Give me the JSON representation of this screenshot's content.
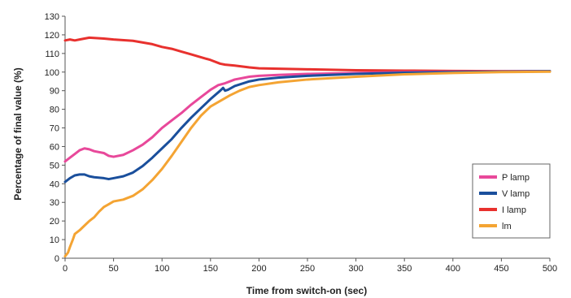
{
  "chart_data": {
    "type": "line",
    "title": "",
    "xlabel": "Time from switch-on (sec)",
    "ylabel": "Percentage of final value (%)",
    "xlim": [
      0,
      500
    ],
    "ylim": [
      0,
      130
    ],
    "x_ticks": [
      0,
      50,
      100,
      150,
      200,
      250,
      300,
      350,
      400,
      450,
      500
    ],
    "y_ticks": [
      0,
      10,
      20,
      30,
      40,
      50,
      60,
      70,
      80,
      90,
      100,
      110,
      120,
      130
    ],
    "grid": false,
    "legend_position": "right",
    "series": [
      {
        "name": "P lamp",
        "color": "#e8489a",
        "points": [
          [
            0,
            52
          ],
          [
            5,
            54
          ],
          [
            10,
            56
          ],
          [
            15,
            58
          ],
          [
            20,
            59
          ],
          [
            25,
            58.5
          ],
          [
            30,
            57.5
          ],
          [
            40,
            56.5
          ],
          [
            45,
            55
          ],
          [
            50,
            54.5
          ],
          [
            60,
            55.5
          ],
          [
            70,
            58
          ],
          [
            80,
            61
          ],
          [
            90,
            65
          ],
          [
            100,
            70
          ],
          [
            110,
            74
          ],
          [
            120,
            78
          ],
          [
            130,
            82.5
          ],
          [
            140,
            86.5
          ],
          [
            150,
            90.5
          ],
          [
            158,
            93
          ],
          [
            165,
            94
          ],
          [
            175,
            96
          ],
          [
            190,
            97.5
          ],
          [
            200,
            98
          ],
          [
            220,
            98.5
          ],
          [
            250,
            99
          ],
          [
            300,
            99.5
          ],
          [
            350,
            100
          ],
          [
            400,
            100.2
          ],
          [
            450,
            100.3
          ],
          [
            500,
            100.5
          ]
        ]
      },
      {
        "name": "V lamp",
        "color": "#1a4f9c",
        "points": [
          [
            0,
            41
          ],
          [
            5,
            43
          ],
          [
            10,
            44.5
          ],
          [
            15,
            45
          ],
          [
            20,
            45
          ],
          [
            25,
            44
          ],
          [
            30,
            43.5
          ],
          [
            40,
            43
          ],
          [
            45,
            42.5
          ],
          [
            50,
            43
          ],
          [
            60,
            44
          ],
          [
            70,
            46
          ],
          [
            80,
            49.5
          ],
          [
            90,
            54
          ],
          [
            100,
            59
          ],
          [
            110,
            64
          ],
          [
            120,
            70
          ],
          [
            130,
            75.5
          ],
          [
            140,
            80.5
          ],
          [
            150,
            85.5
          ],
          [
            160,
            90
          ],
          [
            163,
            91.5
          ],
          [
            165,
            90
          ],
          [
            168,
            90.5
          ],
          [
            175,
            92.5
          ],
          [
            190,
            95
          ],
          [
            200,
            96
          ],
          [
            220,
            97
          ],
          [
            250,
            98
          ],
          [
            300,
            99
          ],
          [
            350,
            99.7
          ],
          [
            400,
            100
          ],
          [
            450,
            100.2
          ],
          [
            500,
            100.5
          ]
        ]
      },
      {
        "name": "I lamp",
        "color": "#e8312e",
        "points": [
          [
            0,
            117
          ],
          [
            5,
            117.5
          ],
          [
            10,
            117
          ],
          [
            15,
            117.5
          ],
          [
            20,
            118
          ],
          [
            25,
            118.5
          ],
          [
            40,
            118
          ],
          [
            50,
            117.5
          ],
          [
            70,
            116.8
          ],
          [
            90,
            115
          ],
          [
            100,
            113.5
          ],
          [
            110,
            112.5
          ],
          [
            120,
            111
          ],
          [
            130,
            109.5
          ],
          [
            140,
            108
          ],
          [
            150,
            106.5
          ],
          [
            160,
            104.5
          ],
          [
            165,
            104
          ],
          [
            175,
            103.5
          ],
          [
            190,
            102.5
          ],
          [
            200,
            102
          ],
          [
            220,
            101.8
          ],
          [
            250,
            101.5
          ],
          [
            300,
            101
          ],
          [
            350,
            100.8
          ],
          [
            400,
            100.6
          ],
          [
            450,
            100.5
          ],
          [
            500,
            100.5
          ]
        ]
      },
      {
        "name": "lm",
        "color": "#f4a433",
        "points": [
          [
            0,
            1
          ],
          [
            3,
            3
          ],
          [
            5,
            6
          ],
          [
            8,
            10
          ],
          [
            10,
            13
          ],
          [
            15,
            15
          ],
          [
            20,
            17.5
          ],
          [
            25,
            20
          ],
          [
            30,
            22
          ],
          [
            35,
            25
          ],
          [
            40,
            27.5
          ],
          [
            45,
            29
          ],
          [
            50,
            30.5
          ],
          [
            60,
            31.5
          ],
          [
            70,
            33.5
          ],
          [
            80,
            37
          ],
          [
            90,
            42
          ],
          [
            100,
            48
          ],
          [
            110,
            55
          ],
          [
            120,
            62.5
          ],
          [
            130,
            70
          ],
          [
            140,
            76.5
          ],
          [
            150,
            81.5
          ],
          [
            160,
            84.5
          ],
          [
            170,
            87.5
          ],
          [
            180,
            90
          ],
          [
            190,
            92
          ],
          [
            200,
            93
          ],
          [
            220,
            94.5
          ],
          [
            250,
            96
          ],
          [
            300,
            97.5
          ],
          [
            350,
            98.8
          ],
          [
            400,
            99.5
          ],
          [
            450,
            100
          ],
          [
            500,
            100.2
          ]
        ]
      }
    ]
  }
}
